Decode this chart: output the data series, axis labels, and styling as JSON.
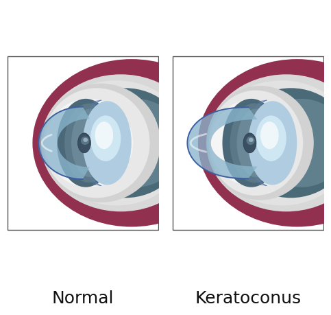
{
  "label_normal": "Normal",
  "label_keratoconus": "Keratoconus",
  "bg_color": "#ffffff",
  "choroid_color": "#9b3050",
  "sclera_color": "#e0e0e0",
  "vitreous_dark": "#4a6878",
  "vitreous_light": "#7a9aaa",
  "iris_color": "#4a6878",
  "lens_color": "#c0d8e8",
  "cornea_fill": "#8ab5cc",
  "cornea_edge": "#3d5fa0",
  "aqueous_color": "#cce0f0",
  "pupil_color": "#3a5060",
  "zonule_color": "#6080b0",
  "box_color": "#555555",
  "label_fontsize": 18
}
